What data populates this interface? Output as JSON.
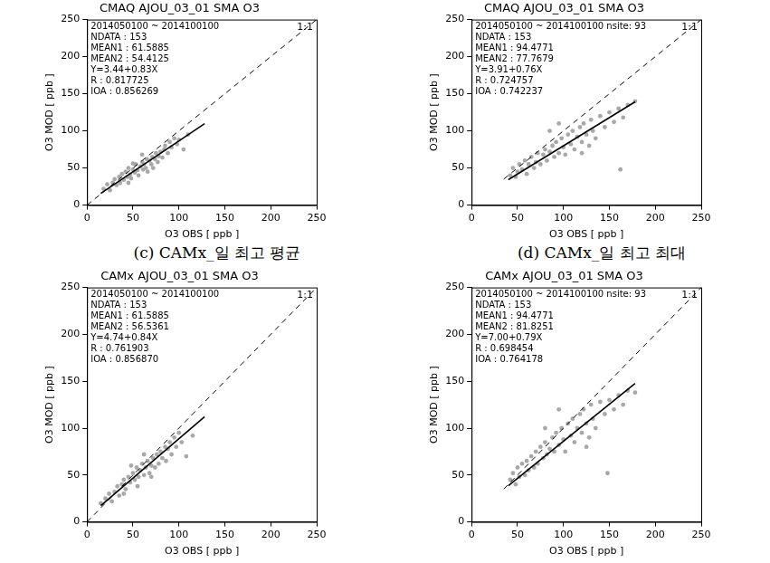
{
  "chart_data": [
    {
      "type": "scatter",
      "title": "CMAQ AJOU_03_01 SMA O3",
      "annotations": [
        "2014050100 ~ 2014100100",
        "NDATA : 153",
        "MEAN1 : 61.5885",
        "MEAN2 : 54.4125",
        "Y=3.44+0.83X",
        "R : 0.817725",
        "IOA : 0.856269"
      ],
      "xlabel": "O3 OBS [ ppb ]",
      "ylabel": "O3 MOD [ ppb ]",
      "xlim": [
        0,
        250
      ],
      "ylim": [
        0,
        250
      ],
      "xticks": [
        0,
        50,
        100,
        150,
        200,
        250
      ],
      "yticks": [
        0,
        50,
        100,
        150,
        200,
        250
      ],
      "grid": false,
      "series": [
        {
          "type": "scatter",
          "color": "#a8a8a8",
          "marker": "circle",
          "x": [
            18,
            22,
            25,
            28,
            30,
            32,
            35,
            36,
            38,
            40,
            42,
            44,
            45,
            47,
            48,
            50,
            52,
            53,
            55,
            56,
            58,
            60,
            61,
            62,
            64,
            65,
            66,
            68,
            70,
            71,
            72,
            74,
            75,
            77,
            78,
            80,
            82,
            84,
            85,
            88,
            90,
            92,
            95,
            98,
            100,
            105,
            110,
            60,
            50,
            45
          ],
          "values": [
            22,
            28,
            20,
            30,
            35,
            27,
            38,
            30,
            42,
            34,
            45,
            38,
            50,
            41,
            36,
            48,
            44,
            55,
            47,
            40,
            52,
            58,
            48,
            55,
            50,
            62,
            45,
            60,
            55,
            65,
            50,
            62,
            70,
            58,
            66,
            72,
            64,
            75,
            80,
            70,
            85,
            78,
            90,
            82,
            88,
            75,
            95,
            68,
            56,
            30
          ]
        },
        {
          "type": "line",
          "color": "#000000",
          "line_style": "solid",
          "x": [
            15,
            128
          ],
          "values": [
            15.89,
            109.68
          ]
        },
        {
          "type": "line",
          "name": "1:1",
          "color": "#000000",
          "line_style": "dashed",
          "x": [
            0,
            250
          ],
          "values": [
            0,
            250
          ]
        }
      ]
    },
    {
      "type": "scatter",
      "title": "CMAQ AJOU_03_01 SMA O3",
      "annotations": [
        "2014050100 ~ 2014100100 nsite: 93",
        "NDATA : 153",
        "MEAN1 : 94.4771",
        "MEAN2 : 77.7679",
        "Y=3.91+0.76X",
        "R : 0.724757",
        "IOA : 0.742237"
      ],
      "xlabel": "O3 OBS [ ppb ]",
      "ylabel": "O3 MOD [ ppb ]",
      "xlim": [
        0,
        250
      ],
      "ylim": [
        0,
        250
      ],
      "xticks": [
        0,
        50,
        100,
        150,
        200,
        250
      ],
      "yticks": [
        0,
        50,
        100,
        150,
        200,
        250
      ],
      "grid": false,
      "series": [
        {
          "type": "scatter",
          "color": "#a8a8a8",
          "marker": "circle",
          "x": [
            42,
            45,
            48,
            50,
            52,
            55,
            58,
            60,
            62,
            65,
            68,
            70,
            72,
            75,
            78,
            80,
            82,
            85,
            88,
            90,
            92,
            95,
            98,
            100,
            102,
            105,
            108,
            110,
            112,
            115,
            118,
            120,
            122,
            125,
            128,
            130,
            132,
            135,
            140,
            145,
            150,
            155,
            160,
            165,
            170,
            178,
            162,
            95,
            85,
            120
          ],
          "values": [
            40,
            50,
            38,
            45,
            55,
            48,
            60,
            42,
            55,
            65,
            50,
            58,
            70,
            55,
            68,
            75,
            60,
            72,
            80,
            65,
            85,
            70,
            90,
            78,
            68,
            95,
            82,
            100,
            75,
            92,
            105,
            85,
            110,
            95,
            80,
            115,
            100,
            90,
            120,
            105,
            125,
            112,
            130,
            118,
            135,
            140,
            48,
            110,
            100,
            70
          ]
        },
        {
          "type": "line",
          "color": "#000000",
          "line_style": "solid",
          "x": [
            40,
            178
          ],
          "values": [
            34.31,
            139.19
          ]
        },
        {
          "type": "line",
          "name": "1:1",
          "color": "#000000",
          "line_style": "dashed",
          "x": [
            35,
            250
          ],
          "values": [
            35,
            250
          ]
        }
      ]
    },
    {
      "type": "scatter",
      "title": "CAMx AJOU_03_01 SMA O3",
      "subtitle": "(c) CAMx_일 최고 평균",
      "annotations": [
        "2014050100 ~ 2014100100",
        "NDATA : 153",
        "MEAN1 : 61.5885",
        "MEAN2 : 56.5361",
        "Y=4.74+0.84X",
        "R : 0.761903",
        "IOA : 0.856870"
      ],
      "xlabel": "O3 OBS [ ppb ]",
      "ylabel": "O3 MOD [ ppb ]",
      "xlim": [
        0,
        250
      ],
      "ylim": [
        0,
        250
      ],
      "xticks": [
        0,
        50,
        100,
        150,
        200,
        250
      ],
      "yticks": [
        0,
        50,
        100,
        150,
        200,
        250
      ],
      "grid": false,
      "series": [
        {
          "type": "scatter",
          "color": "#a8a8a8",
          "marker": "circle",
          "x": [
            15,
            20,
            24,
            27,
            30,
            33,
            35,
            38,
            40,
            42,
            45,
            47,
            50,
            52,
            54,
            56,
            58,
            60,
            62,
            64,
            66,
            68,
            70,
            72,
            74,
            76,
            78,
            80,
            82,
            85,
            86,
            88,
            90,
            92,
            95,
            97,
            100,
            103,
            108,
            115,
            55,
            48,
            62,
            70,
            40
          ],
          "values": [
            20,
            25,
            30,
            22,
            32,
            38,
            28,
            40,
            45,
            35,
            48,
            42,
            52,
            45,
            58,
            48,
            55,
            62,
            50,
            58,
            65,
            52,
            60,
            68,
            58,
            72,
            62,
            75,
            68,
            80,
            65,
            78,
            85,
            72,
            90,
            80,
            95,
            85,
            70,
            92,
            38,
            60,
            72,
            48,
            30
          ]
        },
        {
          "type": "line",
          "color": "#000000",
          "line_style": "solid",
          "x": [
            15,
            128
          ],
          "values": [
            17.34,
            112.26
          ]
        },
        {
          "type": "line",
          "name": "1:1",
          "color": "#000000",
          "line_style": "dashed",
          "x": [
            0,
            250
          ],
          "values": [
            0,
            250
          ]
        }
      ]
    },
    {
      "type": "scatter",
      "title": "CAMx AJOU_03_01 SMA O3",
      "subtitle": "(d) CAMx_일 최고 최대",
      "annotations": [
        "2014050100 ~ 2014100100 nsite: 93",
        "NDATA : 153",
        "MEAN1 : 94.4771",
        "MEAN2 : 81.8251",
        "Y=7.00+0.79X",
        "R : 0.698454",
        "IOA : 0.764178"
      ],
      "xlabel": "O3 OBS [ ppb ]",
      "ylabel": "O3 MOD [ ppb ]",
      "xlim": [
        0,
        250
      ],
      "ylim": [
        0,
        250
      ],
      "xticks": [
        0,
        50,
        100,
        150,
        200,
        250
      ],
      "yticks": [
        0,
        50,
        100,
        150,
        200,
        250
      ],
      "grid": false,
      "series": [
        {
          "type": "scatter",
          "color": "#a8a8a8",
          "marker": "circle",
          "x": [
            42,
            45,
            48,
            50,
            52,
            55,
            58,
            60,
            62,
            65,
            68,
            70,
            72,
            75,
            78,
            80,
            82,
            85,
            88,
            90,
            92,
            95,
            98,
            100,
            102,
            105,
            108,
            110,
            112,
            115,
            118,
            120,
            122,
            125,
            128,
            130,
            132,
            135,
            140,
            145,
            150,
            155,
            160,
            165,
            170,
            178,
            148,
            95,
            80,
            125
          ],
          "values": [
            45,
            52,
            40,
            58,
            48,
            62,
            50,
            65,
            55,
            70,
            58,
            75,
            62,
            80,
            68,
            85,
            72,
            78,
            90,
            75,
            95,
            82,
            100,
            88,
            75,
            105,
            92,
            110,
            85,
            100,
            115,
            95,
            120,
            105,
            90,
            125,
            110,
            100,
            128,
            115,
            130,
            120,
            135,
            125,
            140,
            138,
            52,
            120,
            100,
            80
          ]
        },
        {
          "type": "line",
          "color": "#000000",
          "line_style": "solid",
          "x": [
            40,
            178
          ],
          "values": [
            38.6,
            147.62
          ]
        },
        {
          "type": "line",
          "name": "1:1",
          "color": "#000000",
          "line_style": "dashed",
          "x": [
            35,
            250
          ],
          "values": [
            35,
            250
          ]
        }
      ]
    }
  ]
}
